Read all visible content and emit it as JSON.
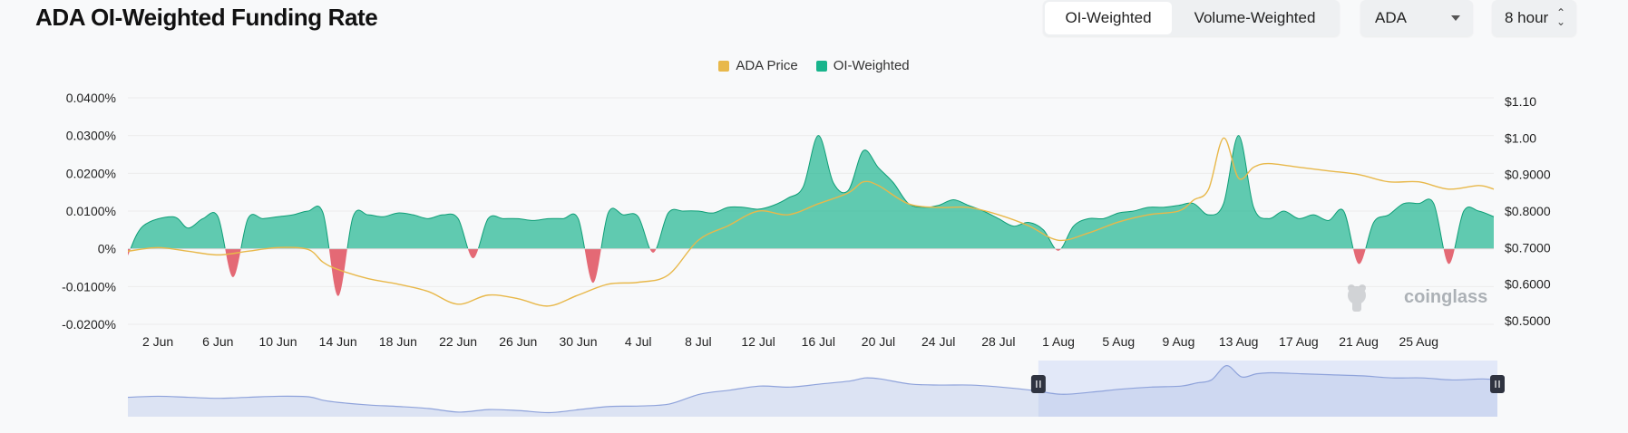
{
  "header": {
    "title": "ADA OI-Weighted Funding Rate",
    "tabs": [
      {
        "label": "OI-Weighted",
        "active": true
      },
      {
        "label": "Volume-Weighted",
        "active": false
      }
    ],
    "coin_select": {
      "value": "ADA"
    },
    "interval_select": {
      "value": "8 hour"
    }
  },
  "watermark": "coinglass",
  "chart_data": {
    "type": "area",
    "legend": [
      {
        "name": "ADA Price",
        "color": "#e8b84a"
      },
      {
        "name": "OI-Weighted",
        "color": "#18b48c"
      }
    ],
    "x_tick_labels": [
      "2 Jun",
      "6 Jun",
      "10 Jun",
      "14 Jun",
      "18 Jun",
      "22 Jun",
      "26 Jun",
      "30 Jun",
      "4 Jul",
      "8 Jul",
      "12 Jul",
      "16 Jul",
      "20 Jul",
      "24 Jul",
      "28 Jul",
      "1 Aug",
      "5 Aug",
      "9 Aug",
      "13 Aug",
      "17 Aug",
      "21 Aug",
      "25 Aug"
    ],
    "x_range": [
      "2024-05-31",
      "2024-08-30"
    ],
    "y_left": {
      "ticks": [
        "0.0400%",
        "0.0300%",
        "0.0200%",
        "0.0100%",
        "0%",
        "-0.0100%",
        "-0.0200%"
      ],
      "range": [
        -0.02,
        0.04
      ],
      "unit": "%"
    },
    "y_right": {
      "ticks": [
        "$1.10",
        "$1.00",
        "$0.9000",
        "$0.8000",
        "$0.7000",
        "$0.6000",
        "$0.5000"
      ],
      "range": [
        0.49,
        1.11
      ],
      "unit": "$"
    },
    "colors": {
      "positive": "#18b48c",
      "negative": "#e0505d",
      "price": "#e8b84a",
      "navigator": "#a9b9e6"
    },
    "series": [
      {
        "name": "OI-Weighted",
        "unit": "%",
        "x": [
          0,
          1,
          3,
          4,
          5,
          6,
          7,
          8,
          9,
          10,
          11,
          12,
          13,
          14,
          15,
          16,
          17,
          18,
          19,
          20,
          21,
          22,
          23,
          24,
          25,
          26,
          27,
          28,
          29,
          30,
          31,
          32,
          33,
          34,
          35,
          36,
          37,
          38,
          39,
          40,
          41,
          42,
          43,
          44,
          45,
          46,
          47,
          48,
          49,
          50,
          51,
          52,
          53,
          54,
          55,
          56,
          57,
          58,
          59,
          60,
          61,
          62,
          63,
          64,
          65,
          66,
          67,
          68,
          69,
          70,
          71,
          72,
          73,
          74,
          75,
          76,
          77,
          78,
          79,
          80,
          81,
          82,
          83,
          84,
          85,
          86,
          87,
          88,
          89,
          90,
          91
        ],
        "values": [
          -0.0018,
          0.006,
          0.0085,
          0.0055,
          0.008,
          0.0085,
          -0.0075,
          0.008,
          0.008,
          0.0085,
          0.009,
          0.01,
          0.0095,
          -0.0125,
          0.0085,
          0.009,
          0.0085,
          0.0095,
          0.009,
          0.008,
          0.009,
          0.008,
          -0.0025,
          0.008,
          0.008,
          0.008,
          0.0075,
          0.008,
          0.008,
          0.008,
          -0.009,
          0.0095,
          0.009,
          0.0085,
          -0.001,
          0.0095,
          0.01,
          0.01,
          0.0095,
          0.011,
          0.011,
          0.0105,
          0.0115,
          0.0135,
          0.0165,
          0.03,
          0.0175,
          0.0155,
          0.026,
          0.0215,
          0.0175,
          0.012,
          0.011,
          0.0115,
          0.013,
          0.0115,
          0.01,
          0.008,
          0.006,
          0.007,
          0.005,
          -0.0005,
          0.006,
          0.008,
          0.008,
          0.0095,
          0.01,
          0.011,
          0.011,
          0.0115,
          0.012,
          0.009,
          0.012,
          0.03,
          0.011,
          0.008,
          0.01,
          0.008,
          0.009,
          0.0075,
          0.01,
          -0.004,
          0.007,
          0.009,
          0.012,
          0.012,
          0.012,
          -0.004,
          0.01,
          0.01,
          0.0085
        ]
      },
      {
        "name": "ADA Price",
        "unit": "$",
        "x": [
          0,
          2,
          4,
          6,
          8,
          10,
          12,
          13,
          14,
          16,
          18,
          20,
          22,
          24,
          26,
          28,
          30,
          32,
          34,
          36,
          38,
          40,
          42,
          44,
          46,
          48,
          49,
          50,
          52,
          54,
          56,
          58,
          60,
          62,
          64,
          66,
          68,
          70,
          71,
          72,
          73,
          74,
          75,
          76,
          78,
          80,
          82,
          84,
          86,
          88,
          90,
          91
        ],
        "values": [
          0.69,
          0.7,
          0.69,
          0.68,
          0.69,
          0.7,
          0.695,
          0.66,
          0.64,
          0.615,
          0.6,
          0.58,
          0.545,
          0.57,
          0.56,
          0.54,
          0.57,
          0.6,
          0.605,
          0.625,
          0.72,
          0.76,
          0.8,
          0.79,
          0.82,
          0.85,
          0.88,
          0.87,
          0.82,
          0.81,
          0.81,
          0.79,
          0.76,
          0.72,
          0.74,
          0.77,
          0.79,
          0.8,
          0.83,
          0.86,
          1.0,
          0.89,
          0.92,
          0.93,
          0.92,
          0.91,
          0.9,
          0.88,
          0.88,
          0.86,
          0.87,
          0.86
        ]
      }
    ]
  }
}
